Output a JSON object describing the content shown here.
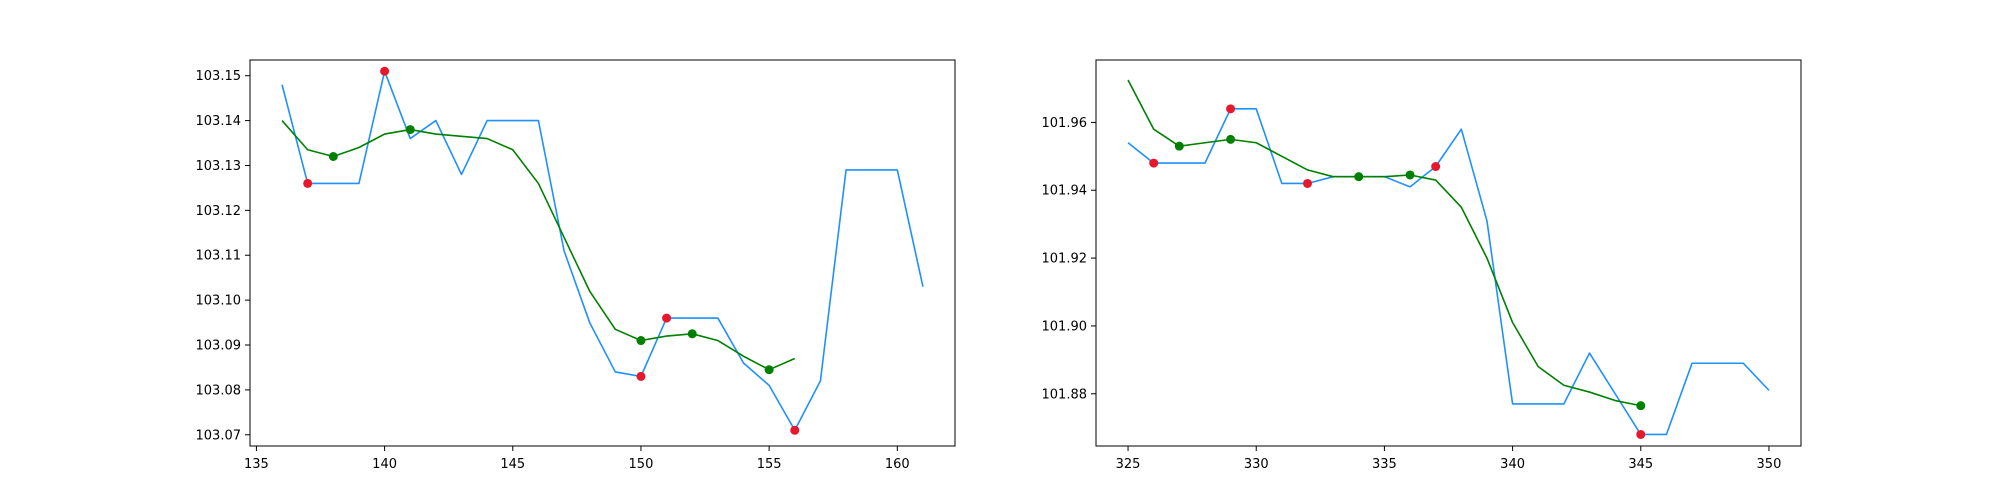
{
  "chart_data": [
    {
      "type": "line",
      "title": "",
      "xlabel": "",
      "ylabel": "",
      "xlim": [
        134.75,
        162.25
      ],
      "ylim": [
        103.0675,
        103.1535
      ],
      "xticks": [
        135,
        140,
        145,
        150,
        155,
        160
      ],
      "yticks": [
        103.07,
        103.08,
        103.09,
        103.1,
        103.11,
        103.12,
        103.13,
        103.14,
        103.15
      ],
      "ytick_decimals": 2,
      "grid": false,
      "legend": "none",
      "series": [
        {
          "kind": "line",
          "color": "#1e90ff",
          "x": [
            136,
            137,
            138,
            139,
            140,
            141,
            142,
            143,
            144,
            145,
            146,
            147,
            148,
            149,
            150,
            151,
            152,
            153,
            154,
            155,
            156,
            157,
            158,
            159,
            160,
            161
          ],
          "y": [
            103.148,
            103.126,
            103.126,
            103.126,
            103.151,
            103.136,
            103.14,
            103.128,
            103.14,
            103.14,
            103.14,
            103.111,
            103.095,
            103.084,
            103.083,
            103.096,
            103.096,
            103.096,
            103.086,
            103.081,
            103.071,
            103.082,
            103.129,
            103.129,
            103.129,
            103.103
          ]
        },
        {
          "kind": "line",
          "color": "#008000",
          "x": [
            136,
            137,
            138,
            139,
            140,
            141,
            142,
            143,
            144,
            145,
            146,
            147,
            148,
            149,
            150,
            151,
            152,
            153,
            154,
            155,
            156
          ],
          "y": [
            103.14,
            103.1335,
            103.132,
            103.134,
            103.137,
            103.138,
            103.137,
            103.1365,
            103.136,
            103.1335,
            103.126,
            103.114,
            103.102,
            103.0935,
            103.091,
            103.092,
            103.0925,
            103.091,
            103.0875,
            103.0845,
            103.087
          ]
        },
        {
          "kind": "scatter",
          "color": "#e8182c",
          "x": [
            137,
            140,
            150,
            151,
            156
          ],
          "y": [
            103.126,
            103.151,
            103.083,
            103.096,
            103.071
          ]
        },
        {
          "kind": "scatter",
          "color": "#008000",
          "x": [
            138,
            141,
            150,
            152,
            155
          ],
          "y": [
            103.132,
            103.138,
            103.091,
            103.0925,
            103.0845
          ]
        }
      ]
    },
    {
      "type": "line",
      "title": "",
      "xlabel": "",
      "ylabel": "",
      "xlim": [
        323.75,
        351.25
      ],
      "ylim": [
        101.8646,
        101.9784
      ],
      "xticks": [
        325,
        330,
        335,
        340,
        345,
        350
      ],
      "yticks": [
        101.88,
        101.9,
        101.92,
        101.94,
        101.96
      ],
      "ytick_decimals": 2,
      "grid": false,
      "legend": "none",
      "series": [
        {
          "kind": "line",
          "color": "#1e90ff",
          "x": [
            325,
            326,
            327,
            328,
            329,
            330,
            331,
            332,
            333,
            334,
            335,
            336,
            337,
            338,
            339,
            340,
            341,
            342,
            343,
            344,
            345,
            346,
            347,
            348,
            349,
            350
          ],
          "y": [
            101.954,
            101.948,
            101.948,
            101.948,
            101.964,
            101.964,
            101.942,
            101.942,
            101.944,
            101.944,
            101.944,
            101.941,
            101.947,
            101.958,
            101.931,
            101.877,
            101.877,
            101.877,
            101.892,
            101.88,
            101.868,
            101.868,
            101.889,
            101.889,
            101.889,
            101.881
          ]
        },
        {
          "kind": "line",
          "color": "#008000",
          "x": [
            325,
            326,
            327,
            328,
            329,
            330,
            331,
            332,
            333,
            334,
            335,
            336,
            337,
            338,
            339,
            340,
            341,
            342,
            343,
            344,
            345
          ],
          "y": [
            101.9725,
            101.958,
            101.953,
            101.954,
            101.955,
            101.954,
            101.95,
            101.946,
            101.944,
            101.944,
            101.944,
            101.9445,
            101.943,
            101.935,
            101.92,
            101.901,
            101.888,
            101.8825,
            101.8805,
            101.878,
            101.8765
          ]
        },
        {
          "kind": "scatter",
          "color": "#e8182c",
          "x": [
            326,
            329,
            332,
            337,
            345
          ],
          "y": [
            101.948,
            101.964,
            101.942,
            101.947,
            101.868
          ]
        },
        {
          "kind": "scatter",
          "color": "#008000",
          "x": [
            327,
            329,
            334,
            336,
            345
          ],
          "y": [
            101.953,
            101.955,
            101.944,
            101.9445,
            101.8765
          ]
        }
      ]
    }
  ]
}
